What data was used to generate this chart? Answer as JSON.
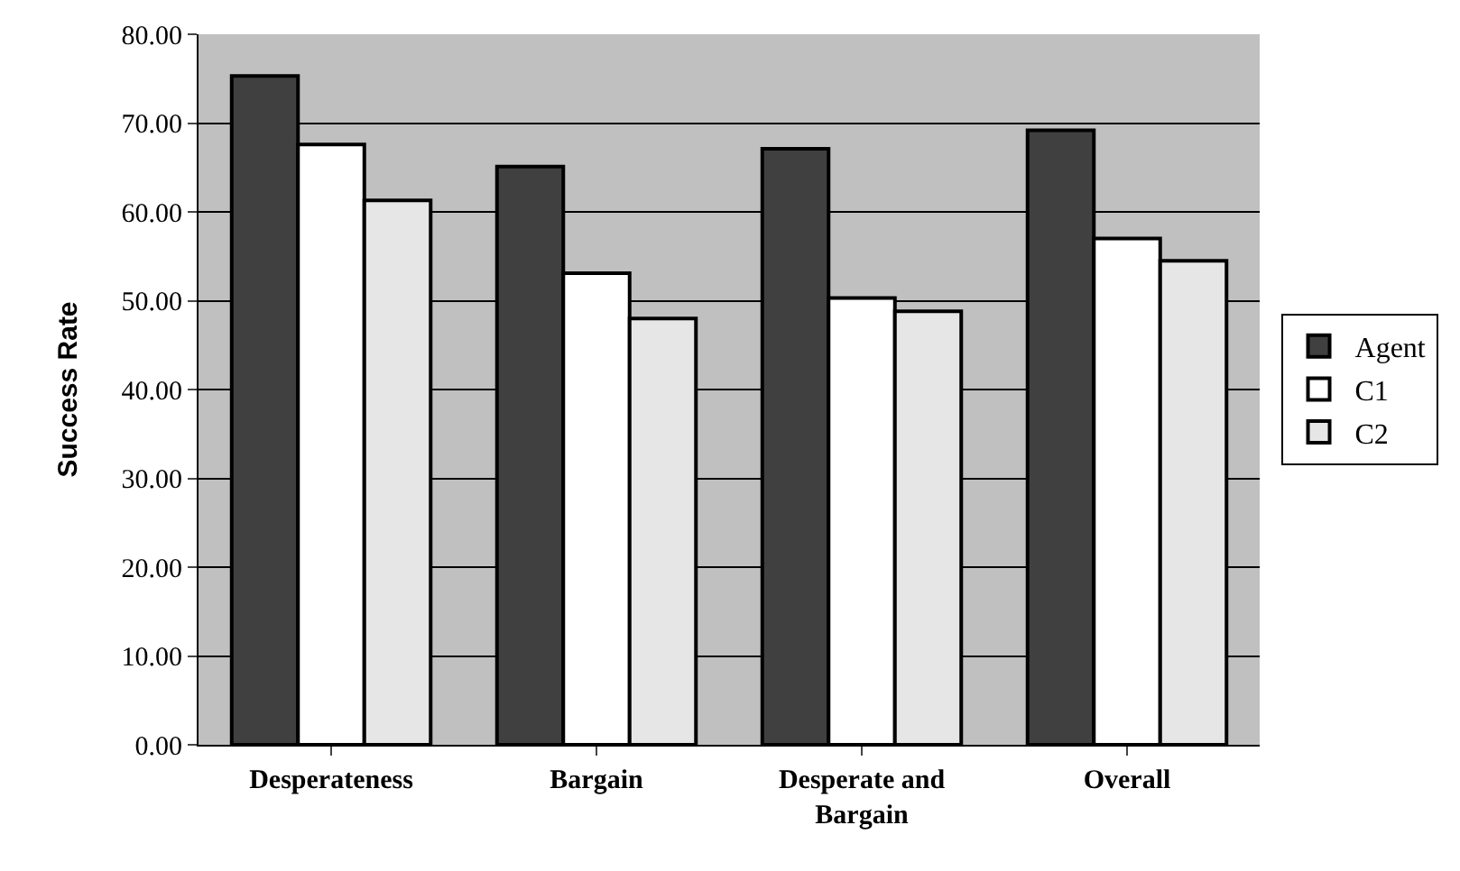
{
  "chart_data": {
    "type": "bar",
    "ylabel": "Success Rate",
    "categories": [
      "Desperateness",
      "Bargain",
      "Desperate and Bargain",
      "Overall"
    ],
    "series": [
      {
        "name": "Agent",
        "color": "#404040",
        "values": [
          75.3,
          65.1,
          67.1,
          69.2
        ]
      },
      {
        "name": "C1",
        "color": "#ffffff",
        "values": [
          67.6,
          53.1,
          50.3,
          57.0
        ]
      },
      {
        "name": "C2",
        "color": "#e6e6e6",
        "values": [
          61.3,
          48.0,
          48.8,
          54.5
        ]
      }
    ],
    "ylim": [
      0,
      80
    ],
    "yticks": [
      {
        "value": 0,
        "label": "0.00"
      },
      {
        "value": 10,
        "label": "10.00"
      },
      {
        "value": 20,
        "label": "20.00"
      },
      {
        "value": 30,
        "label": "30.00"
      },
      {
        "value": 40,
        "label": "40.00"
      },
      {
        "value": 50,
        "label": "50.00"
      },
      {
        "value": 60,
        "label": "60.00"
      },
      {
        "value": 70,
        "label": "70.00"
      },
      {
        "value": 80,
        "label": "80.00"
      }
    ],
    "grid": "y",
    "legend": "right"
  }
}
